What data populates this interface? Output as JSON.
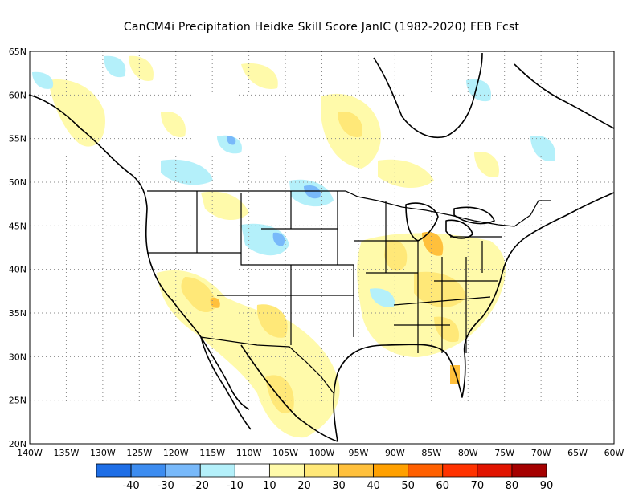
{
  "title": "CanCM4i  Precipitation Heidke Skill Score JanIC (1982-2020) FEB Fcst",
  "map": {
    "lon_labels": [
      "140W",
      "135W",
      "130W",
      "125W",
      "120W",
      "115W",
      "110W",
      "105W",
      "100W",
      "95W",
      "90W",
      "85W",
      "80W",
      "75W",
      "70W",
      "65W",
      "60W"
    ],
    "lat_labels": [
      "65N",
      "60N",
      "55N",
      "50N",
      "45N",
      "40N",
      "35N",
      "30N",
      "25N",
      "20N"
    ],
    "lon_range": [
      -140,
      -60
    ],
    "lat_range": [
      20,
      65
    ],
    "gridlines": "dotted"
  },
  "colorbar": {
    "labels": [
      "-40",
      "-30",
      "-20",
      "-10",
      "10",
      "20",
      "30",
      "40",
      "50",
      "60",
      "70",
      "80",
      "90"
    ],
    "colors": [
      "#1e6ee6",
      "#3c8cf0",
      "#78b9fa",
      "#b4f0fa",
      "#ffffff",
      "#fffaaa",
      "#ffe878",
      "#ffc03c",
      "#ffa000",
      "#ff6000",
      "#ff3200",
      "#e11400",
      "#a50000"
    ]
  }
}
